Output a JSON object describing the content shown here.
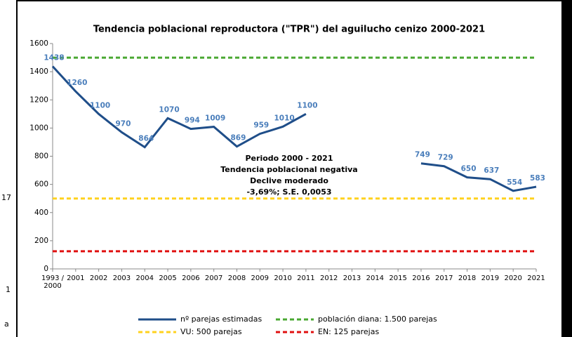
{
  "chart_data": {
    "type": "line",
    "title": "Tendencia poblacional reproductora (\"TPR\") del aguilucho cenizo 2000-2021",
    "categories": [
      "1993 / 2000",
      "2001",
      "2002",
      "2003",
      "2004",
      "2005",
      "2006",
      "2007",
      "2008",
      "2009",
      "2010",
      "2011",
      "2012",
      "2013",
      "2014",
      "2015",
      "2016",
      "2017",
      "2018",
      "2019",
      "2020",
      "2021"
    ],
    "series": [
      {
        "name": "nº parejas estimadas",
        "color": "#1f4e89",
        "dashed": false,
        "data_labels": true,
        "values": [
          1438,
          1260,
          1100,
          970,
          864,
          1070,
          994,
          1009,
          869,
          959,
          1010,
          1100,
          null,
          null,
          null,
          null,
          749,
          729,
          650,
          637,
          554,
          583
        ]
      },
      {
        "name": "población diana: 1.500 parejas",
        "color": "#4aa832",
        "dashed": true,
        "data_labels": false,
        "values": [
          1500,
          1500,
          1500,
          1500,
          1500,
          1500,
          1500,
          1500,
          1500,
          1500,
          1500,
          1500,
          1500,
          1500,
          1500,
          1500,
          1500,
          1500,
          1500,
          1500,
          1500,
          1500
        ]
      },
      {
        "name": "VU: 500 parejas",
        "color": "#ffd21f",
        "dashed": true,
        "data_labels": false,
        "values": [
          500,
          500,
          500,
          500,
          500,
          500,
          500,
          500,
          500,
          500,
          500,
          500,
          500,
          500,
          500,
          500,
          500,
          500,
          500,
          500,
          500,
          500
        ]
      },
      {
        "name": "EN: 125 parejas",
        "color": "#e01010",
        "dashed": true,
        "data_labels": false,
        "values": [
          125,
          125,
          125,
          125,
          125,
          125,
          125,
          125,
          125,
          125,
          125,
          125,
          125,
          125,
          125,
          125,
          125,
          125,
          125,
          125,
          125,
          125
        ]
      }
    ],
    "annotation": [
      "Periodo 2000 - 2021",
      "Tendencia poblacional negativa",
      "Declive moderado",
      "-3,69%; S.E. 0,0053"
    ],
    "ylim": [
      0,
      1600
    ],
    "yticks": [
      0,
      200,
      400,
      600,
      800,
      1000,
      1200,
      1400,
      1600
    ],
    "grid": false,
    "legend": "bottom",
    "clipped_text": [
      "17",
      "1",
      "a"
    ]
  }
}
